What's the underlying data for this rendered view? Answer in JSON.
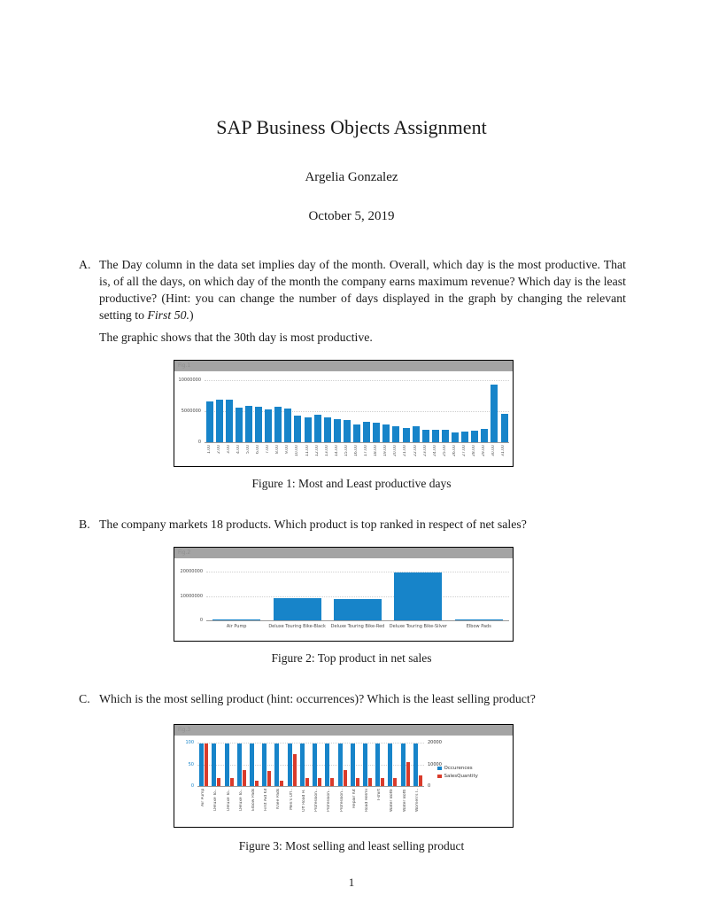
{
  "document": {
    "title": "SAP Business Objects Assignment",
    "author": "Argelia Gonzalez",
    "date": "October 5, 2019",
    "page_number": "1"
  },
  "items": {
    "a": {
      "label": "A.",
      "text_before_italic": "The Day column in the data set implies day of the month. Overall, which day is the most productive. That is, of all the days, on which day of the month the company earns maximum revenue? Which day is the least productive? (Hint: you can change the number of days displayed in the graph by changing the relevant setting to ",
      "text_italic": "First 50.",
      "text_after_italic": ")",
      "note": "The graphic shows that the 30th day is most productive."
    },
    "b": {
      "label": "B.",
      "text": "The company markets 18 products. Which product is top ranked in respect of net sales?"
    },
    "c": {
      "label": "C.",
      "text": "Which is the most selling product (hint: occurrences)? Which is the least selling product?"
    }
  },
  "figures": [
    {
      "header_label": "Fig.1",
      "caption": "Figure 1: Most and Least productive days"
    },
    {
      "header_label": "Fig.2",
      "caption": "Figure 2: Top product in net sales"
    },
    {
      "header_label": "Fig.3",
      "caption": "Figure 3: Most selling and least selling product"
    }
  ],
  "colors": {
    "bar_blue": "#1784c9",
    "bar_red": "#d93b2b",
    "figure_header_bg": "#a4a4a4",
    "grid": "#cfcfcf",
    "axis_text": "#4a4a4a"
  },
  "chart_data": [
    {
      "type": "bar",
      "categories": [
        "1.00",
        "2.00",
        "3.00",
        "4.00",
        "5.00",
        "6.00",
        "7.00",
        "8.00",
        "9.00",
        "10.00",
        "11.00",
        "12.00",
        "13.00",
        "14.00",
        "15.00",
        "16.00",
        "17.00",
        "18.00",
        "19.00",
        "20.00",
        "21.00",
        "22.00",
        "23.00",
        "24.00",
        "25.00",
        "26.00",
        "27.00",
        "28.00",
        "29.00",
        "30.00",
        "31.00"
      ],
      "values": [
        6500000,
        6800000,
        6800000,
        5600000,
        5900000,
        5700000,
        5300000,
        5700000,
        5400000,
        4300000,
        4000000,
        4400000,
        4000000,
        3700000,
        3600000,
        2900000,
        3300000,
        3100000,
        2900000,
        2600000,
        2300000,
        2500000,
        2000000,
        2000000,
        2000000,
        1500000,
        1700000,
        1900000,
        2200000,
        9300000,
        4500000
      ],
      "ylim": [
        0,
        10000000
      ],
      "yticks": [
        0,
        5000000,
        10000000
      ],
      "bar_color": "#1784c9",
      "x_labels_rotated": true,
      "grid": true,
      "xlabel": "",
      "ylabel": ""
    },
    {
      "type": "bar",
      "categories": [
        "Air Pump",
        "Deluxe Touring Bike-Black",
        "Deluxe Touring Bike-Red",
        "Deluxe Touring Bike-Silver",
        "Elbow Pads"
      ],
      "values": [
        400000,
        9000000,
        8600000,
        19500000,
        200000
      ],
      "ylim": [
        0,
        20000000
      ],
      "yticks": [
        0,
        10000000,
        20000000
      ],
      "bar_color": "#1784c9",
      "x_labels_rotated": false,
      "grid": true,
      "xlabel": "",
      "ylabel": ""
    },
    {
      "type": "bar",
      "categories": [
        "Air Pump",
        "Deluxe To..",
        "Deluxe To..",
        "Deluxe To..",
        "Elbow Pads",
        "First Aid Kit",
        "Knee Pads",
        "Men's Off..",
        "Off Road H..",
        "Profession..",
        "Profession..",
        "Profession..",
        "Repair Kit",
        "Road Helmet",
        "T-shirt",
        "Water Bottle",
        "Water Bottl..",
        "Women's I.."
      ],
      "series": [
        {
          "name": "Occurences",
          "axis": "left",
          "color": "#1784c9",
          "values": [
            97,
            97,
            97,
            97,
            97,
            97,
            97,
            97,
            97,
            97,
            97,
            97,
            97,
            97,
            97,
            97,
            97,
            97
          ]
        },
        {
          "name": "SalesQuantity",
          "axis": "right",
          "color": "#d93b2b",
          "values": [
            19500,
            3500,
            3500,
            7400,
            2400,
            7000,
            2400,
            14700,
            3700,
            3600,
            3600,
            7200,
            3700,
            3700,
            3600,
            3700,
            11200,
            4800
          ]
        }
      ],
      "axes": {
        "left": {
          "lim": [
            0,
            100
          ],
          "ticks": [
            0,
            50,
            100
          ],
          "label_color": "#1784c9"
        },
        "right": {
          "lim": [
            0,
            20000
          ],
          "ticks": [
            0,
            10000,
            20000
          ],
          "label_color": "#333333"
        }
      },
      "legend": true,
      "legend_position": "right",
      "x_labels_rotated": true,
      "grid": true
    }
  ]
}
